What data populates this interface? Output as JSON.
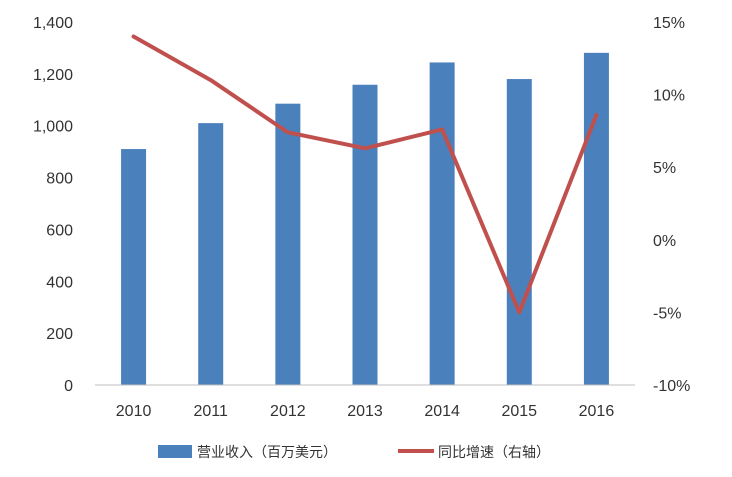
{
  "chart_data": {
    "type": "bar",
    "categories": [
      "2010",
      "2011",
      "2012",
      "2013",
      "2014",
      "2015",
      "2016"
    ],
    "series": [
      {
        "name": "营业收入（百万美元）",
        "type": "bar",
        "axis": "left",
        "color": "#4a81bd",
        "values": [
          910,
          1010,
          1085,
          1158,
          1244,
          1180,
          1281
        ]
      },
      {
        "name": "同比增速（右轴）",
        "type": "line",
        "axis": "right",
        "color": "#c0504d",
        "values": [
          14.0,
          11.0,
          7.4,
          6.3,
          7.6,
          -5.0,
          8.6
        ]
      }
    ],
    "y_left": {
      "ylim": [
        0,
        1400
      ],
      "ticks": [
        0,
        200,
        400,
        600,
        800,
        1000,
        1200,
        1400
      ],
      "tick_labels": [
        "0",
        "200",
        "400",
        "600",
        "800",
        "1,000",
        "1,200",
        "1,400"
      ]
    },
    "y_right": {
      "ylim": [
        -10,
        15
      ],
      "ticks": [
        -10,
        -5,
        0,
        5,
        10,
        15
      ],
      "tick_labels": [
        "-10%",
        "-5%",
        "0%",
        "5%",
        "10%",
        "15%"
      ]
    },
    "title": "",
    "xlabel": "",
    "grid": false,
    "legend_position": "bottom"
  }
}
